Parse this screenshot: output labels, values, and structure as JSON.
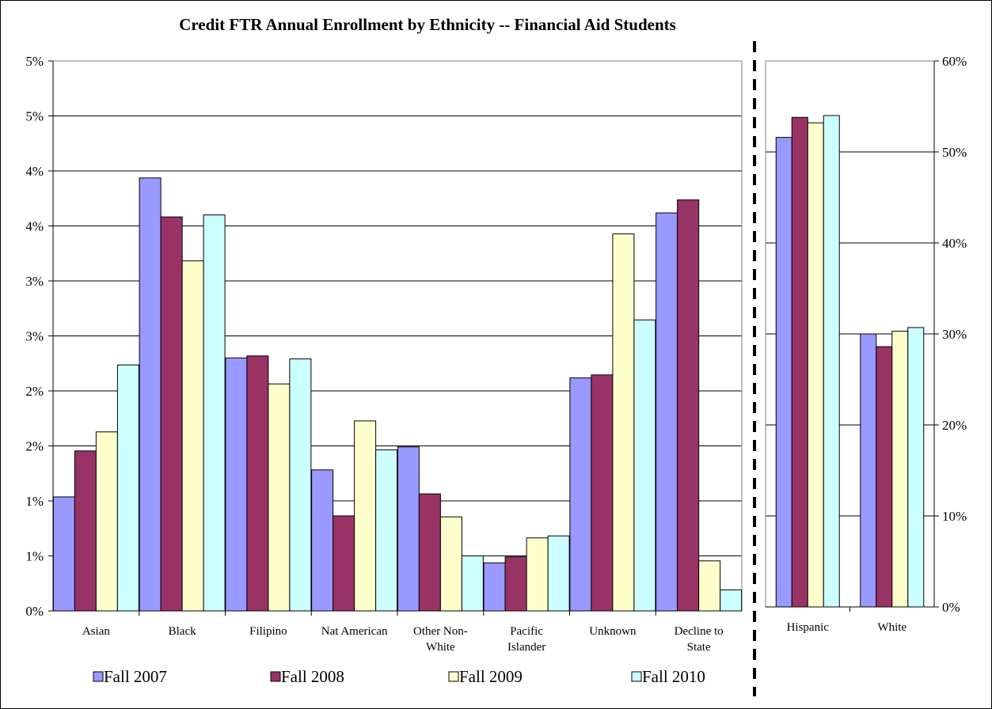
{
  "chart_data": {
    "type": "bar",
    "title": "Credit FTR Annual Enrollment by Ethnicity -- Financial Aid Students",
    "series": [
      {
        "name": "Fall 2007",
        "color": "#9999ff"
      },
      {
        "name": "Fall 2008",
        "color": "#993366"
      },
      {
        "name": "Fall 2009",
        "color": "#ffffcc"
      },
      {
        "name": "Fall 2010",
        "color": "#ccffff"
      }
    ],
    "legend_position": "bottom",
    "panels": [
      {
        "axis": "left",
        "yticks": [
          "0%",
          "1%",
          "1%",
          "2%",
          "2%",
          "3%",
          "3%",
          "4%",
          "4%",
          "5%",
          "5%"
        ],
        "ylim": [
          0,
          5.5
        ],
        "grid": true,
        "categories": [
          {
            "lines": [
              "Asian"
            ]
          },
          {
            "lines": [
              "Black"
            ]
          },
          {
            "lines": [
              "Filipino"
            ]
          },
          {
            "lines": [
              "Nat American"
            ]
          },
          {
            "lines": [
              "Other Non-",
              "White"
            ]
          },
          {
            "lines": [
              "Pacific",
              "Islander"
            ]
          },
          {
            "lines": [
              "Unknown"
            ]
          },
          {
            "lines": [
              "Decline to",
              "State"
            ]
          }
        ],
        "values": [
          [
            1.14,
            1.6,
            1.79,
            2.46
          ],
          [
            4.33,
            3.94,
            3.5,
            3.96
          ],
          [
            2.53,
            2.55,
            2.27,
            2.52
          ],
          [
            1.41,
            0.95,
            1.9,
            1.61
          ],
          [
            1.64,
            1.17,
            0.94,
            0.55
          ],
          [
            0.48,
            0.54,
            0.73,
            0.75
          ],
          [
            2.33,
            2.36,
            3.77,
            2.91
          ],
          [
            3.98,
            4.11,
            0.5,
            0.21
          ]
        ]
      },
      {
        "axis": "right",
        "yticks": [
          "0%",
          "10%",
          "20%",
          "30%",
          "40%",
          "50%",
          "60%"
        ],
        "ylim": [
          0,
          60
        ],
        "grid": true,
        "categories": [
          {
            "lines": [
              "Hispanic"
            ]
          },
          {
            "lines": [
              "White"
            ]
          }
        ],
        "values": [
          [
            51.6,
            53.8,
            53.2,
            54.0
          ],
          [
            30.0,
            28.6,
            30.3,
            30.7
          ]
        ]
      }
    ]
  }
}
